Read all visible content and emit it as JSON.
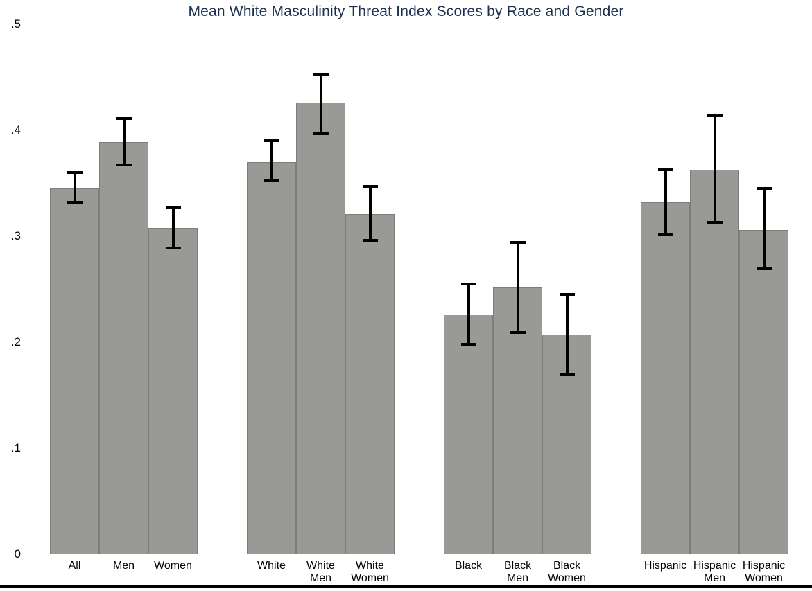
{
  "title": "Mean White Masculinity Threat Index Scores by Race and Gender",
  "colors": {
    "background": "#ffffff",
    "title_text": "#1c3152",
    "axis_text": "#000000",
    "bar_fill": "#999996",
    "bar_border": "#7d7d7d",
    "error_bar": "#000000",
    "bottom_rule": "#000000"
  },
  "chart_data": {
    "type": "bar",
    "title": "Mean White Masculinity Threat Index Scores by Race and Gender",
    "xlabel": "",
    "ylabel": "",
    "ylim": [
      0,
      0.5
    ],
    "yticks": [
      0,
      0.1,
      0.2,
      0.3,
      0.4,
      0.5
    ],
    "ytick_labels": [
      "0",
      ".1",
      ".2",
      ".3",
      ".4",
      ".5"
    ],
    "grid": false,
    "legend": "none",
    "error_bars": "95% CI whiskers",
    "groups": [
      {
        "name": "overall",
        "bars": [
          {
            "label": "All",
            "label_lines": [
              "All"
            ],
            "value": 0.345,
            "ci_low": 0.332,
            "ci_high": 0.36
          },
          {
            "label": "Men",
            "label_lines": [
              "Men"
            ],
            "value": 0.389,
            "ci_low": 0.367,
            "ci_high": 0.411
          },
          {
            "label": "Women",
            "label_lines": [
              "Women"
            ],
            "value": 0.308,
            "ci_low": 0.289,
            "ci_high": 0.327
          }
        ]
      },
      {
        "name": "white",
        "bars": [
          {
            "label": "White",
            "label_lines": [
              "White"
            ],
            "value": 0.37,
            "ci_low": 0.352,
            "ci_high": 0.39
          },
          {
            "label": "White Men",
            "label_lines": [
              "White",
              "Men"
            ],
            "value": 0.426,
            "ci_low": 0.397,
            "ci_high": 0.453
          },
          {
            "label": "White Women",
            "label_lines": [
              "White",
              "Women"
            ],
            "value": 0.321,
            "ci_low": 0.296,
            "ci_high": 0.347
          }
        ]
      },
      {
        "name": "black",
        "bars": [
          {
            "label": "Black",
            "label_lines": [
              "Black"
            ],
            "value": 0.226,
            "ci_low": 0.198,
            "ci_high": 0.255
          },
          {
            "label": "Black Men",
            "label_lines": [
              "Black",
              "Men"
            ],
            "value": 0.252,
            "ci_low": 0.209,
            "ci_high": 0.294
          },
          {
            "label": "Black Women",
            "label_lines": [
              "Black",
              "Women"
            ],
            "value": 0.207,
            "ci_low": 0.17,
            "ci_high": 0.245
          }
        ]
      },
      {
        "name": "hispanic",
        "bars": [
          {
            "label": "Hispanic",
            "label_lines": [
              "Hispanic"
            ],
            "value": 0.332,
            "ci_low": 0.301,
            "ci_high": 0.363
          },
          {
            "label": "Hispanic Men",
            "label_lines": [
              "Hispanic",
              "Men"
            ],
            "value": 0.363,
            "ci_low": 0.313,
            "ci_high": 0.414
          },
          {
            "label": "Hispanic Women",
            "label_lines": [
              "Hispanic",
              "Women"
            ],
            "value": 0.306,
            "ci_low": 0.269,
            "ci_high": 0.345
          }
        ]
      }
    ]
  }
}
